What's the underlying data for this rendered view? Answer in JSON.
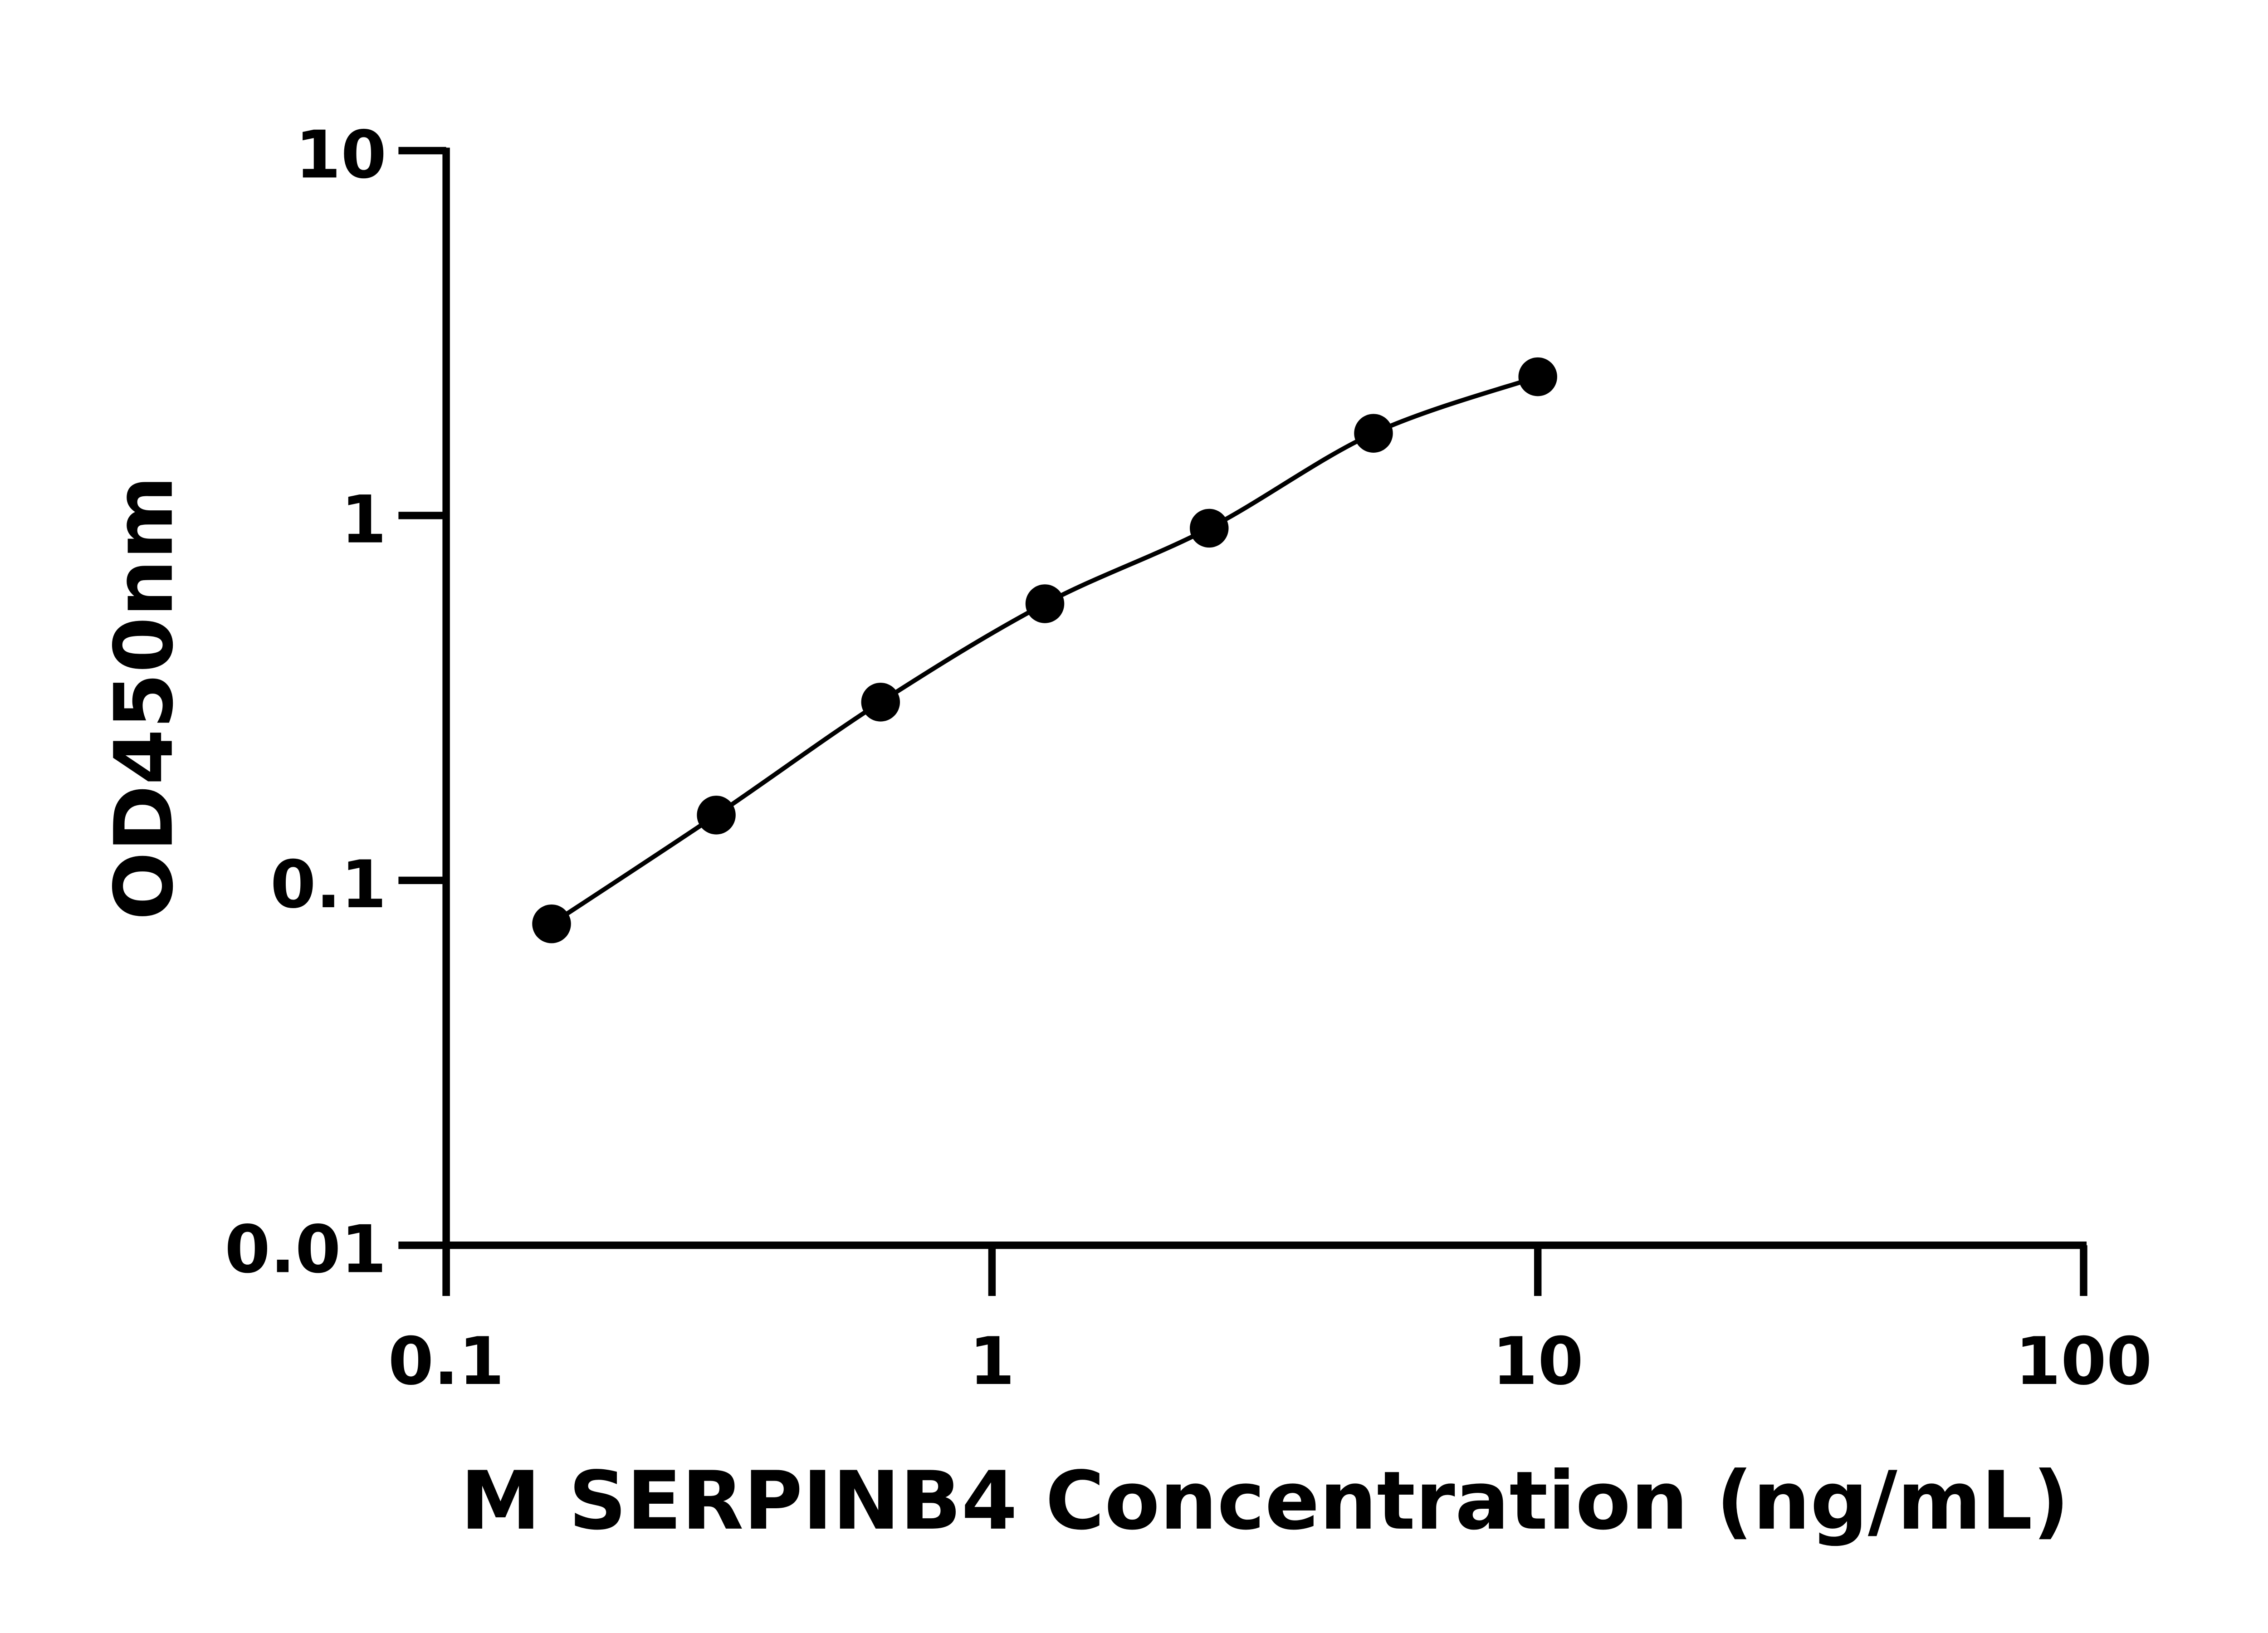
{
  "chart_data": {
    "type": "scatter",
    "title": "",
    "xlabel": "M SERPINB4 Concentration (ng/mL)",
    "ylabel": "OD450nm",
    "x_scale": "log",
    "y_scale": "log",
    "xlim": [
      0.1,
      100
    ],
    "ylim": [
      0.01,
      10
    ],
    "x_ticks": [
      "0.1",
      "1",
      "10",
      "100"
    ],
    "y_ticks": [
      "0.01",
      "0.1",
      "1",
      "10"
    ],
    "grid": false,
    "legend": "none",
    "fit_line": true,
    "marker_color": "#000000",
    "series": [
      {
        "x": [
          0.156,
          0.3125,
          0.625,
          1.25,
          2.5,
          5,
          10
        ],
        "y": [
          0.076,
          0.151,
          0.308,
          0.573,
          0.923,
          1.68,
          2.4
        ]
      }
    ]
  }
}
